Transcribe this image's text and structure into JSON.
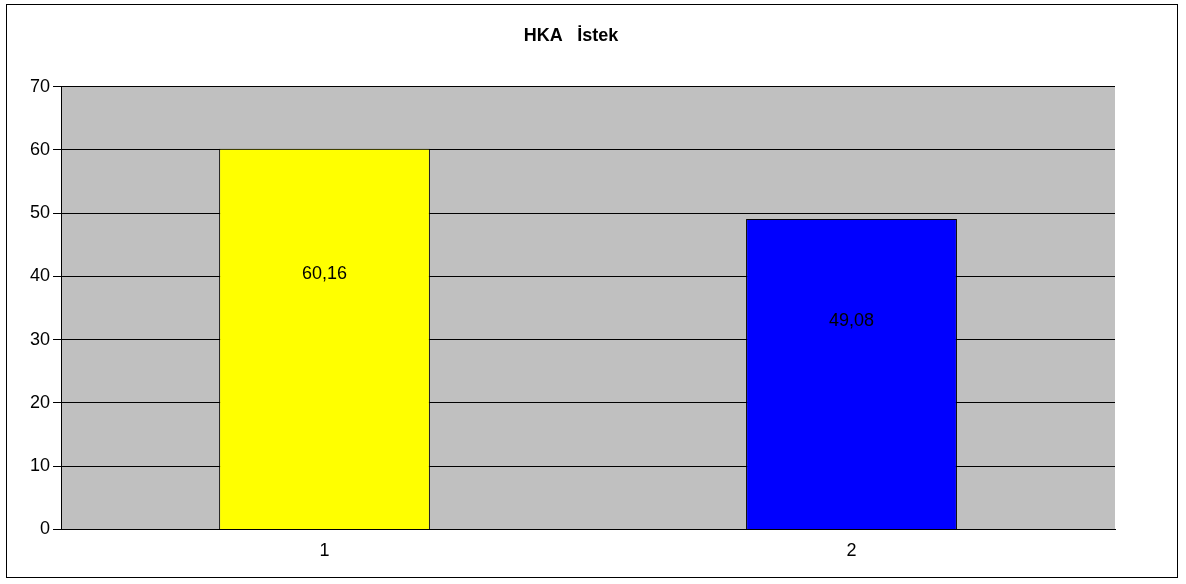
{
  "chart_data": {
    "type": "bar",
    "title": "HKA   İstek",
    "categories": [
      "1",
      "2"
    ],
    "values": [
      60.16,
      49.08
    ],
    "colors": [
      "#ffff00",
      "#0000ff"
    ],
    "value_labels": [
      "60,16",
      "49,08"
    ],
    "ylim": [
      0,
      70
    ],
    "yticks": [
      0,
      10,
      20,
      30,
      40,
      50,
      60,
      70
    ],
    "grid": "y",
    "legend": false
  }
}
